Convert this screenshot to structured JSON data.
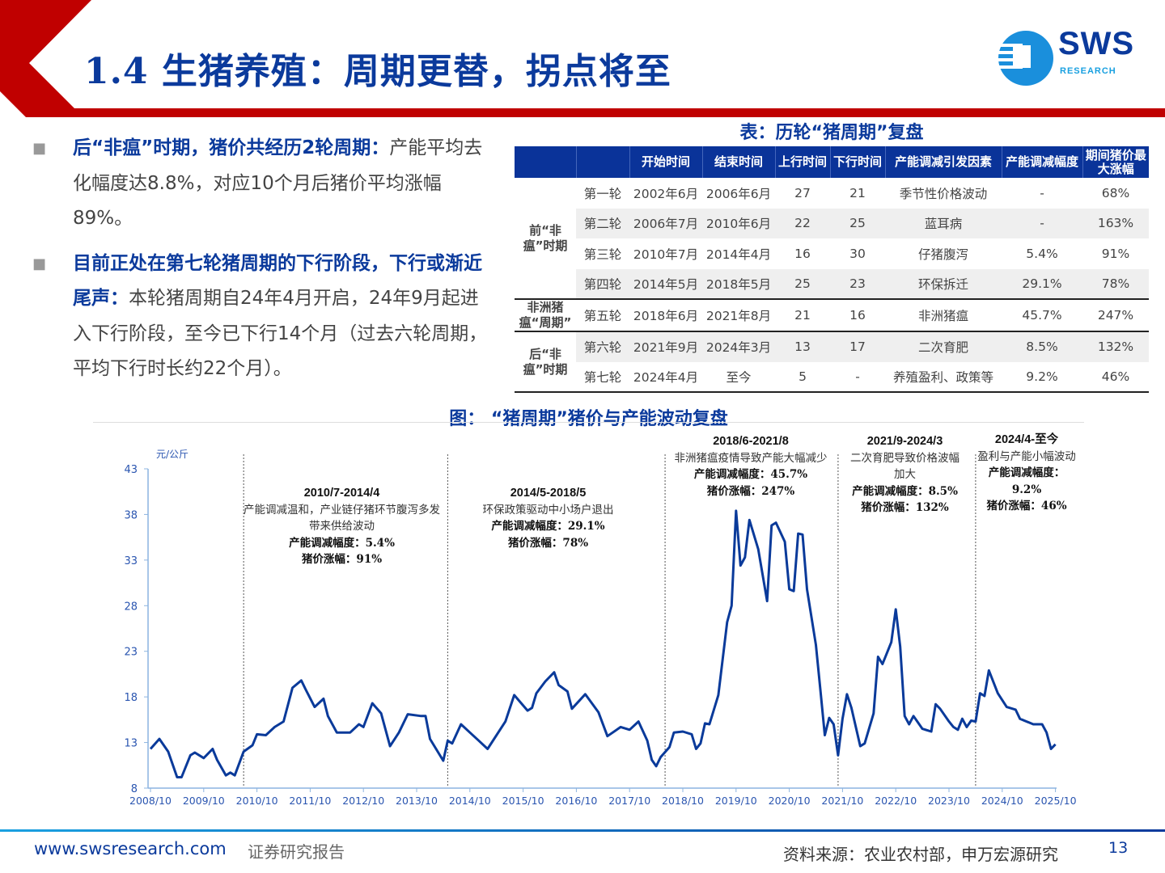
{
  "header": {
    "title": "1.4 生猪养殖：周期更替，拐点将至",
    "logo_text": "SWS",
    "logo_sub": "RESEARCH",
    "accent": "#c00000",
    "brand": "#0b3a9c"
  },
  "bullets": [
    {
      "bold": "后“非瘟”时期，猪价共经历2轮周期：",
      "text": "产能平均去化幅度达8.8%，对应10个月后猪价平均涨幅89%。"
    },
    {
      "bold": "目前正处在第七轮猪周期的下行阶段，下行或渐近尾声：",
      "text": "本轮猪周期自24年4月开启，24年9月起进入下行阶段，至今已下行14个月（过去六轮周期，平均下行时长约22个月）。"
    }
  ],
  "table": {
    "title": "表：历轮“猪周期”复盘",
    "headers": [
      "",
      "",
      "开始时间",
      "结束时间",
      "上行时间",
      "下行时间",
      "产能调减引发因素",
      "产能调减幅度",
      "期间猪价最大涨幅"
    ],
    "groups": [
      "前“非瘟”时期",
      "非洲猪瘟“周期”",
      "后“非瘟”时期"
    ],
    "rows": [
      [
        "第一轮",
        "2002年6月",
        "2006年6月",
        "27",
        "21",
        "季节性价格波动",
        "-",
        "68%"
      ],
      [
        "第二轮",
        "2006年7月",
        "2010年6月",
        "22",
        "25",
        "蓝耳病",
        "-",
        "163%"
      ],
      [
        "第三轮",
        "2010年7月",
        "2014年4月",
        "16",
        "30",
        "仔猪腹泻",
        "5.4%",
        "91%"
      ],
      [
        "第四轮",
        "2014年5月",
        "2018年5月",
        "25",
        "23",
        "环保拆迁",
        "29.1%",
        "78%"
      ],
      [
        "第五轮",
        "2018年6月",
        "2021年8月",
        "21",
        "16",
        "非洲猪瘟",
        "45.7%",
        "247%"
      ],
      [
        "第六轮",
        "2021年9月",
        "2024年3月",
        "13",
        "17",
        "二次育肥",
        "8.5%",
        "132%"
      ],
      [
        "第七轮",
        "2024年4月",
        "至今",
        "5",
        "-",
        "养殖盈利、政策等",
        "9.2%",
        "46%"
      ]
    ]
  },
  "chart_data": {
    "type": "line",
    "title": "图：  “猪周期”猪价与产能波动复盘",
    "ylabel": "元/公斤",
    "ylim": [
      8,
      43
    ],
    "yticks": [
      "43",
      "38",
      "33",
      "28",
      "23",
      "18",
      "13",
      "8"
    ],
    "xticks": [
      "2008/10",
      "2009/10",
      "2010/10",
      "2011/10",
      "2012/10",
      "2013/10",
      "2014/10",
      "2015/10",
      "2016/10",
      "2017/10",
      "2018/10",
      "2019/10",
      "2020/10",
      "2021/10",
      "2022/10",
      "2023/10",
      "2024/10",
      "2025/10"
    ],
    "grid": false,
    "color": "#0a3a9a",
    "dividers": [
      "2010-07",
      "2014-05",
      "2018-06",
      "2021-09",
      "2024-04"
    ],
    "series": [
      {
        "points": [
          [
            "2008-10",
            12.3
          ],
          [
            "2008-12",
            13.4
          ],
          [
            "2009-02",
            12.0
          ],
          [
            "2009-04",
            9.2
          ],
          [
            "2009-05",
            9.2
          ],
          [
            "2009-07",
            11.6
          ],
          [
            "2009-08",
            11.9
          ],
          [
            "2009-10",
            11.3
          ],
          [
            "2009-12",
            12.3
          ],
          [
            "2010-01",
            11.1
          ],
          [
            "2010-03",
            9.4
          ],
          [
            "2010-04",
            9.7
          ],
          [
            "2010-05",
            9.4
          ],
          [
            "2010-07",
            12.0
          ],
          [
            "2010-09",
            12.7
          ],
          [
            "2010-10",
            13.9
          ],
          [
            "2010-12",
            13.8
          ],
          [
            "2011-02",
            14.7
          ],
          [
            "2011-04",
            15.3
          ],
          [
            "2011-06",
            19.0
          ],
          [
            "2011-08",
            19.8
          ],
          [
            "2011-09",
            18.8
          ],
          [
            "2011-11",
            16.9
          ],
          [
            "2012-01",
            17.8
          ],
          [
            "2012-02",
            15.9
          ],
          [
            "2012-04",
            14.1
          ],
          [
            "2012-07",
            14.1
          ],
          [
            "2012-09",
            15.0
          ],
          [
            "2012-10",
            14.7
          ],
          [
            "2012-12",
            17.3
          ],
          [
            "2013-02",
            16.2
          ],
          [
            "2013-04",
            12.6
          ],
          [
            "2013-06",
            14.1
          ],
          [
            "2013-08",
            16.1
          ],
          [
            "2013-11",
            15.9
          ],
          [
            "2013-12",
            15.9
          ],
          [
            "2014-01",
            13.4
          ],
          [
            "2014-04",
            11.0
          ],
          [
            "2014-05",
            13.2
          ],
          [
            "2014-06",
            12.9
          ],
          [
            "2014-08",
            15.0
          ],
          [
            "2014-10",
            14.1
          ],
          [
            "2014-12",
            13.2
          ],
          [
            "2015-02",
            12.3
          ],
          [
            "2015-06",
            15.3
          ],
          [
            "2015-08",
            18.2
          ],
          [
            "2015-11",
            16.5
          ],
          [
            "2015-12",
            16.8
          ],
          [
            "2016-01",
            18.4
          ],
          [
            "2016-03",
            19.7
          ],
          [
            "2016-05",
            20.7
          ],
          [
            "2016-06",
            19.3
          ],
          [
            "2016-08",
            18.6
          ],
          [
            "2016-09",
            16.7
          ],
          [
            "2016-12",
            18.3
          ],
          [
            "2017-03",
            16.3
          ],
          [
            "2017-05",
            13.7
          ],
          [
            "2017-08",
            14.7
          ],
          [
            "2017-10",
            14.4
          ],
          [
            "2017-12",
            15.3
          ],
          [
            "2018-02",
            13.2
          ],
          [
            "2018-03",
            11.1
          ],
          [
            "2018-04",
            10.4
          ],
          [
            "2018-05",
            11.4
          ],
          [
            "2018-07",
            12.5
          ],
          [
            "2018-08",
            14.1
          ],
          [
            "2018-10",
            14.2
          ],
          [
            "2018-12",
            13.9
          ],
          [
            "2019-01",
            12.3
          ],
          [
            "2019-02",
            12.9
          ],
          [
            "2019-03",
            15.1
          ],
          [
            "2019-04",
            15.0
          ],
          [
            "2019-06",
            18.2
          ],
          [
            "2019-08",
            26.2
          ],
          [
            "2019-09",
            28.0
          ],
          [
            "2019-10",
            38.4
          ],
          [
            "2019-11",
            32.4
          ],
          [
            "2019-12",
            33.3
          ],
          [
            "2020-01",
            37.4
          ],
          [
            "2020-03",
            34.2
          ],
          [
            "2020-05",
            28.5
          ],
          [
            "2020-06",
            36.8
          ],
          [
            "2020-07",
            37.1
          ],
          [
            "2020-09",
            35.0
          ],
          [
            "2020-10",
            29.8
          ],
          [
            "2020-11",
            29.6
          ],
          [
            "2020-12",
            35.9
          ],
          [
            "2021-01",
            35.8
          ],
          [
            "2021-02",
            29.8
          ],
          [
            "2021-04",
            23.7
          ],
          [
            "2021-05",
            18.8
          ],
          [
            "2021-06",
            13.8
          ],
          [
            "2021-07",
            15.7
          ],
          [
            "2021-08",
            15.0
          ],
          [
            "2021-09",
            11.6
          ],
          [
            "2021-10",
            15.6
          ],
          [
            "2021-11",
            18.3
          ],
          [
            "2021-12",
            16.8
          ],
          [
            "2022-02",
            12.6
          ],
          [
            "2022-03",
            12.9
          ],
          [
            "2022-05",
            16.2
          ],
          [
            "2022-06",
            22.4
          ],
          [
            "2022-07",
            21.6
          ],
          [
            "2022-09",
            24.0
          ],
          [
            "2022-10",
            27.6
          ],
          [
            "2022-11",
            23.5
          ],
          [
            "2022-12",
            15.9
          ],
          [
            "2023-01",
            15.0
          ],
          [
            "2023-02",
            15.9
          ],
          [
            "2023-04",
            14.5
          ],
          [
            "2023-06",
            14.2
          ],
          [
            "2023-07",
            17.2
          ],
          [
            "2023-08",
            16.7
          ],
          [
            "2023-10",
            15.3
          ],
          [
            "2023-11",
            14.7
          ],
          [
            "2023-12",
            14.4
          ],
          [
            "2024-01",
            15.6
          ],
          [
            "2024-02",
            14.7
          ],
          [
            "2024-03",
            15.4
          ],
          [
            "2024-04",
            15.3
          ],
          [
            "2024-05",
            18.4
          ],
          [
            "2024-06",
            18.1
          ],
          [
            "2024-07",
            20.9
          ],
          [
            "2024-09",
            18.4
          ],
          [
            "2024-11",
            16.9
          ],
          [
            "2025-01",
            16.6
          ],
          [
            "2025-02",
            15.6
          ],
          [
            "2025-05",
            15.0
          ],
          [
            "2025-07",
            15.0
          ],
          [
            "2025-08",
            14.1
          ],
          [
            "2025-09",
            12.3
          ],
          [
            "2025-10",
            12.8
          ]
        ]
      }
    ],
    "annotations": [
      {
        "period": "2010/7-2014/4",
        "desc": "产能调减温和，产业链仔猪环节腹泻多发带来供给波动",
        "cut": "产能调减幅度：5.4%",
        "rise": "猪价涨幅：91%"
      },
      {
        "period": "2014/5-2018/5",
        "desc": "环保政策驱动中小场户退出",
        "cut": "产能调减幅度：29.1%",
        "rise": "猪价涨幅：78%"
      },
      {
        "period": "2018/6-2021/8",
        "desc": "非洲猪瘟疫情导致产能大幅减少",
        "cut": "产能调减幅度：45.7%",
        "rise": "猪价涨幅：247%"
      },
      {
        "period": "2021/9-2024/3",
        "desc": "二次育肥导致价格波幅加大",
        "cut": "产能调减幅度：8.5%",
        "rise": "猪价涨幅：132%"
      },
      {
        "period": "2024/4-至今",
        "desc": "盈利与产能小幅波动",
        "cut": "产能调减幅度：9.2%",
        "rise": "猪价涨幅：46%"
      }
    ]
  },
  "footer": {
    "url": "www.swsresearch.com",
    "label": "证券研究报告",
    "source": "资料来源：农业农村部，申万宏源研究",
    "page": "13"
  }
}
